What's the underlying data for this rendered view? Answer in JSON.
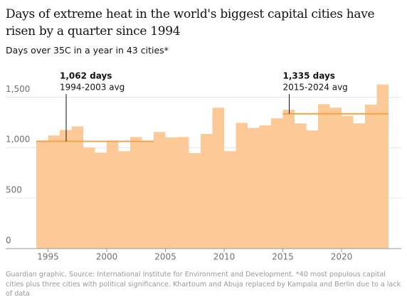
{
  "chart_data": {
    "type": "bar",
    "title": "Days of extreme heat in the world's biggest capital cities have risen by a quarter since 1994",
    "subtitle": "Days over 35C in a year in 43 cities*",
    "source": "Guardian graphic. Source: International Institute for Environment and Development. *40 most populous capital cities plus three cities with political significance. Khartoum and Abuja replaced by Kampala and Berlin due to a lack of data",
    "x": [
      1994,
      1995,
      1996,
      1997,
      1998,
      1999,
      2000,
      2001,
      2002,
      2003,
      2004,
      2005,
      2006,
      2007,
      2008,
      2009,
      2010,
      2011,
      2012,
      2013,
      2014,
      2015,
      2016,
      2017,
      2018,
      2019,
      2020,
      2021,
      2022,
      2023
    ],
    "values": [
      1070,
      1120,
      1175,
      1210,
      1000,
      950,
      1070,
      965,
      1105,
      1055,
      1155,
      1100,
      1105,
      945,
      1135,
      1395,
      965,
      1245,
      1195,
      1220,
      1290,
      1375,
      1240,
      1170,
      1430,
      1395,
      1315,
      1240,
      1425,
      1625
    ],
    "color": "#fdc997",
    "xlim": [
      1994,
      2024
    ],
    "xticks": [
      1995,
      2000,
      2005,
      2010,
      2015,
      2020
    ],
    "ylim": [
      0,
      1700
    ],
    "yticks": [
      0,
      500,
      {
        "value": 1000,
        "label": "1,000"
      },
      {
        "value": 1500,
        "label": "1,500"
      }
    ],
    "grid": true,
    "references": [
      {
        "value": 1062,
        "label": "1,062 days",
        "text": "1994-2003 avg",
        "start": 1994,
        "end": 2004,
        "color": "#f5a443"
      },
      {
        "value": 1335,
        "label": "1,335 days",
        "text": "2015-2024 avg",
        "start": 2015,
        "end": 2024,
        "color": "#f5a443"
      }
    ]
  }
}
